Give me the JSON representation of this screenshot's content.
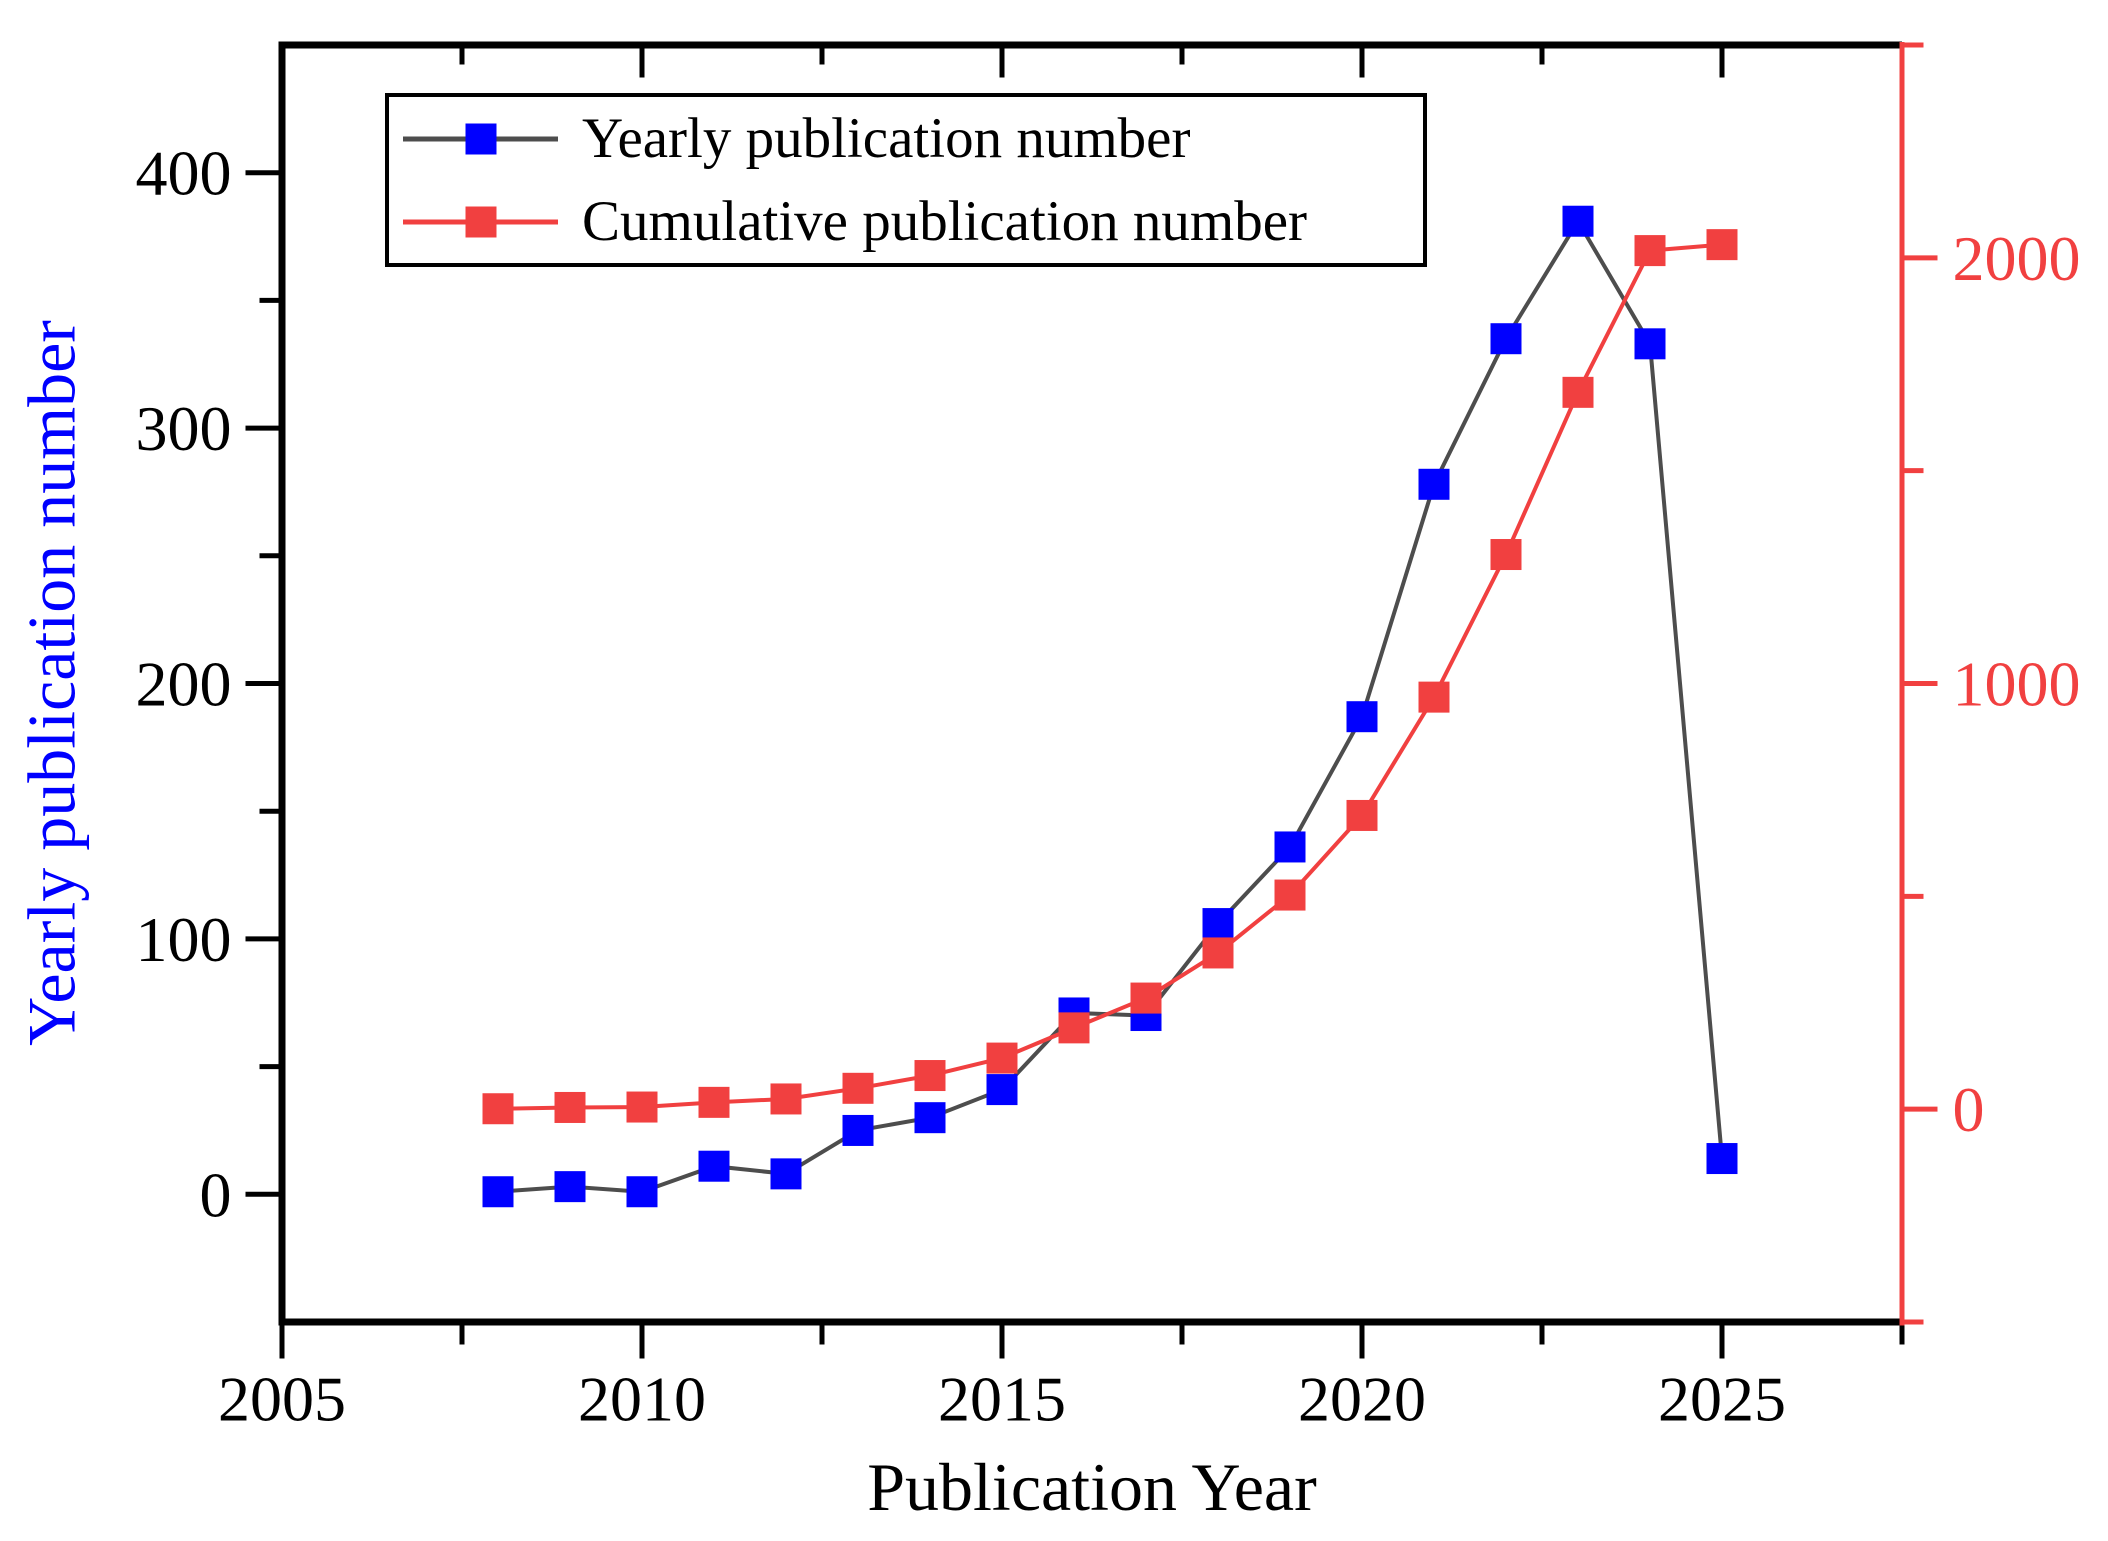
{
  "chart_data": {
    "type": "line",
    "x": [
      2008,
      2009,
      2010,
      2011,
      2012,
      2013,
      2014,
      2015,
      2016,
      2017,
      2018,
      2019,
      2020,
      2021,
      2022,
      2023,
      2024,
      2025
    ],
    "series": [
      {
        "name": "Yearly publication number",
        "axis": "left",
        "marker_color": "#0000FF",
        "line_color": "#4D4D4D",
        "values": [
          1,
          3,
          1,
          11,
          8,
          25,
          30,
          41,
          71,
          70,
          106,
          136,
          187,
          278,
          335,
          381,
          333,
          14
        ]
      },
      {
        "name": "Cumulative publication number",
        "axis": "right",
        "marker_color": "#F14040",
        "line_color": "#F14040",
        "values": [
          1,
          4,
          5,
          16,
          24,
          49,
          79,
          120,
          191,
          261,
          367,
          503,
          690,
          968,
          1303,
          1684,
          2017,
          2031
        ]
      }
    ],
    "title": "",
    "xlabel": "Publication Year",
    "ylabel_left": "Yearly publication number",
    "ylabel_right": "",
    "xlim": [
      2005,
      2027.5
    ],
    "ylim_left": [
      -50,
      450
    ],
    "ylim_right": [
      -500,
      2500
    ],
    "xticks_major": [
      2005,
      2010,
      2015,
      2020,
      2025
    ],
    "xticks_minor": [
      2007.5,
      2012.5,
      2017.5,
      2022.5,
      2027.5
    ],
    "xticks_top_major": [
      2010,
      2015,
      2020,
      2025
    ],
    "xticks_top_minor": [
      2007.5,
      2012.5,
      2017.5,
      2022.5
    ],
    "yticks_left_major": [
      0,
      100,
      200,
      300,
      400
    ],
    "yticks_left_minor": [
      50,
      150,
      250,
      350
    ],
    "yticks_right_major": [
      0,
      1000,
      2000
    ],
    "yticks_right_minor": [
      -500,
      500,
      1500,
      2500
    ],
    "grid": false,
    "legend_position": "top-left-inside"
  },
  "colors": {
    "yearly_marker": "#0000FF",
    "yearly_line": "#4D4D4D",
    "cumulative": "#F14040",
    "left_axis_title": "#0000FF",
    "left_tick_labels": "#000000",
    "right_axis": "#F14040",
    "black_axis": "#000000",
    "background": "#FFFFFF"
  },
  "legend": {
    "entries": [
      {
        "label": "Yearly publication number"
      },
      {
        "label": "Cumulative publication number"
      }
    ]
  }
}
